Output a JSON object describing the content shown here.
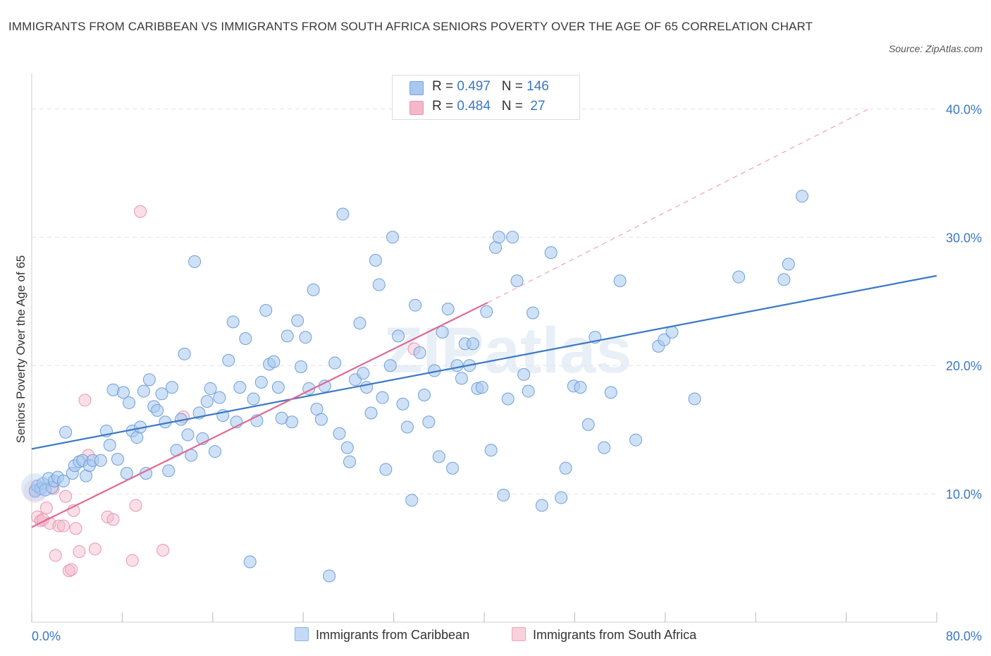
{
  "title": "IMMIGRANTS FROM CARIBBEAN VS IMMIGRANTS FROM SOUTH AFRICA SENIORS POVERTY OVER THE AGE OF 65 CORRELATION CHART",
  "source": "Source: ZipAtlas.com",
  "watermark": "ZIPatlas",
  "legend": {
    "rows": [
      {
        "r_label": "R = ",
        "r_value": "0.497",
        "n_label": "N = ",
        "n_value": "146",
        "color": "#a8c8f0"
      },
      {
        "r_label": "R = ",
        "r_value": "0.484",
        "n_label": "N = ",
        "n_value": " 27",
        "color": "#f5b8ca"
      }
    ]
  },
  "colors": {
    "blue": "#3b78c4",
    "blue_fill": "#a8c8f0",
    "pink": "#e06a93",
    "pink_fill": "#f5b8ca",
    "grid": "#e3e3e3",
    "tick_text": "#3b78c4"
  },
  "chart_data": {
    "type": "scatter",
    "title": "IMMIGRANTS FROM CARIBBEAN VS IMMIGRANTS FROM SOUTH AFRICA SENIORS POVERTY OVER THE AGE OF 65 CORRELATION CHART",
    "xlabel": "",
    "ylabel": "Seniors Poverty Over the Age of 65",
    "xlim": [
      0,
      80
    ],
    "ylim": [
      0,
      42
    ],
    "x_tick_labels": [
      "0.0%",
      "80.0%"
    ],
    "y_ticks": [
      10,
      20,
      30,
      40
    ],
    "y_tick_labels": [
      "10.0%",
      "20.0%",
      "30.0%",
      "40.0%"
    ],
    "grid": true,
    "legend_position": "top-center",
    "series": [
      {
        "name": "Immigrants from Caribbean",
        "color": "#3b78c4",
        "R": 0.497,
        "N": 146,
        "trend": {
          "x": [
            0,
            80
          ],
          "y": [
            13.5,
            27.0
          ],
          "style": "solid"
        },
        "points": [
          [
            0.3,
            10.2
          ],
          [
            0.5,
            10.6
          ],
          [
            0.8,
            10.4
          ],
          [
            1.0,
            10.8
          ],
          [
            1.2,
            10.3
          ],
          [
            1.5,
            11.2
          ],
          [
            1.8,
            10.5
          ],
          [
            2.0,
            11.0
          ],
          [
            2.3,
            11.3
          ],
          [
            2.8,
            11.0
          ],
          [
            3.0,
            14.8
          ],
          [
            3.6,
            11.6
          ],
          [
            3.8,
            12.2
          ],
          [
            4.2,
            12.5
          ],
          [
            4.5,
            12.6
          ],
          [
            4.8,
            11.4
          ],
          [
            5.1,
            12.2
          ],
          [
            5.4,
            12.6
          ],
          [
            6.1,
            12.6
          ],
          [
            6.6,
            14.9
          ],
          [
            6.9,
            13.8
          ],
          [
            7.2,
            18.1
          ],
          [
            7.6,
            12.7
          ],
          [
            8.1,
            17.9
          ],
          [
            8.4,
            11.6
          ],
          [
            8.6,
            17.1
          ],
          [
            8.9,
            14.9
          ],
          [
            9.3,
            14.4
          ],
          [
            9.6,
            15.2
          ],
          [
            9.9,
            18.0
          ],
          [
            10.1,
            11.6
          ],
          [
            10.4,
            18.9
          ],
          [
            10.8,
            16.8
          ],
          [
            11.1,
            16.5
          ],
          [
            11.5,
            17.8
          ],
          [
            11.8,
            15.6
          ],
          [
            12.1,
            11.8
          ],
          [
            12.4,
            18.3
          ],
          [
            12.8,
            13.4
          ],
          [
            13.2,
            15.8
          ],
          [
            13.5,
            20.9
          ],
          [
            13.8,
            14.6
          ],
          [
            14.1,
            13.0
          ],
          [
            14.4,
            28.1
          ],
          [
            14.8,
            16.3
          ],
          [
            15.1,
            14.3
          ],
          [
            15.5,
            17.2
          ],
          [
            15.8,
            18.2
          ],
          [
            16.2,
            13.3
          ],
          [
            16.6,
            17.5
          ],
          [
            16.9,
            16.1
          ],
          [
            17.4,
            20.4
          ],
          [
            17.8,
            23.4
          ],
          [
            18.1,
            15.6
          ],
          [
            18.4,
            18.3
          ],
          [
            18.9,
            22.1
          ],
          [
            19.3,
            4.7
          ],
          [
            19.6,
            17.4
          ],
          [
            19.9,
            15.7
          ],
          [
            20.3,
            18.7
          ],
          [
            20.7,
            24.3
          ],
          [
            21.0,
            20.1
          ],
          [
            21.4,
            20.3
          ],
          [
            21.8,
            18.3
          ],
          [
            22.1,
            15.9
          ],
          [
            22.6,
            22.3
          ],
          [
            23.0,
            15.6
          ],
          [
            23.5,
            23.5
          ],
          [
            23.8,
            19.9
          ],
          [
            24.2,
            22.2
          ],
          [
            24.5,
            18.2
          ],
          [
            24.9,
            25.9
          ],
          [
            25.2,
            16.6
          ],
          [
            25.6,
            15.8
          ],
          [
            25.9,
            18.4
          ],
          [
            26.3,
            3.6
          ],
          [
            26.8,
            20.2
          ],
          [
            27.2,
            14.7
          ],
          [
            27.5,
            31.8
          ],
          [
            27.9,
            13.6
          ],
          [
            28.1,
            12.5
          ],
          [
            28.6,
            18.9
          ],
          [
            29.0,
            23.3
          ],
          [
            29.3,
            19.4
          ],
          [
            29.6,
            18.3
          ],
          [
            30.0,
            16.3
          ],
          [
            30.4,
            28.2
          ],
          [
            30.7,
            26.3
          ],
          [
            31.0,
            17.5
          ],
          [
            31.3,
            11.9
          ],
          [
            31.7,
            20.0
          ],
          [
            31.9,
            30.0
          ],
          [
            32.4,
            22.3
          ],
          [
            32.8,
            17.0
          ],
          [
            33.2,
            15.2
          ],
          [
            33.6,
            9.5
          ],
          [
            33.9,
            24.7
          ],
          [
            34.3,
            21.0
          ],
          [
            34.7,
            17.7
          ],
          [
            35.1,
            15.6
          ],
          [
            35.6,
            19.6
          ],
          [
            36.0,
            12.9
          ],
          [
            36.3,
            22.6
          ],
          [
            36.8,
            24.4
          ],
          [
            37.2,
            12.0
          ],
          [
            37.6,
            20.0
          ],
          [
            38.0,
            19.0
          ],
          [
            38.3,
            21.7
          ],
          [
            38.7,
            20.0
          ],
          [
            39.0,
            21.7
          ],
          [
            39.4,
            18.2
          ],
          [
            39.8,
            18.3
          ],
          [
            40.2,
            24.2
          ],
          [
            40.6,
            13.4
          ],
          [
            41.0,
            29.2
          ],
          [
            41.3,
            30.0
          ],
          [
            41.7,
            9.9
          ],
          [
            42.1,
            17.4
          ],
          [
            42.5,
            30.0
          ],
          [
            42.9,
            26.6
          ],
          [
            43.5,
            19.3
          ],
          [
            43.9,
            18.0
          ],
          [
            44.3,
            24.1
          ],
          [
            45.1,
            9.1
          ],
          [
            45.9,
            28.8
          ],
          [
            46.8,
            9.7
          ],
          [
            47.2,
            12.0
          ],
          [
            47.9,
            18.4
          ],
          [
            48.5,
            18.3
          ],
          [
            49.2,
            15.4
          ],
          [
            49.8,
            22.2
          ],
          [
            50.6,
            13.6
          ],
          [
            51.2,
            17.9
          ],
          [
            52.0,
            26.6
          ],
          [
            53.4,
            14.2
          ],
          [
            55.4,
            21.5
          ],
          [
            55.9,
            22.0
          ],
          [
            56.6,
            22.6
          ],
          [
            58.6,
            17.4
          ],
          [
            62.5,
            26.9
          ],
          [
            66.5,
            26.7
          ],
          [
            66.9,
            27.9
          ],
          [
            68.1,
            33.2
          ]
        ]
      },
      {
        "name": "Immigrants from South Africa",
        "color": "#e06a93",
        "R": 0.484,
        "N": 27,
        "trend": {
          "x": [
            0,
            40.3
          ],
          "y": [
            7.4,
            24.9
          ],
          "style": "solid",
          "extended": {
            "x": [
              40.3,
              74
            ],
            "y": [
              24.9,
              40.0
            ],
            "style": "dashed"
          }
        },
        "points": [
          [
            0.3,
            10.3
          ],
          [
            0.5,
            8.2
          ],
          [
            0.8,
            7.9
          ],
          [
            1.0,
            8.0
          ],
          [
            1.3,
            8.9
          ],
          [
            1.6,
            7.7
          ],
          [
            1.9,
            10.4
          ],
          [
            2.1,
            5.2
          ],
          [
            2.4,
            7.5
          ],
          [
            2.8,
            7.5
          ],
          [
            3.0,
            9.8
          ],
          [
            3.3,
            4.0
          ],
          [
            3.5,
            4.1
          ],
          [
            3.7,
            8.7
          ],
          [
            3.9,
            7.3
          ],
          [
            4.2,
            5.5
          ],
          [
            4.7,
            17.3
          ],
          [
            5.0,
            13.0
          ],
          [
            5.6,
            5.7
          ],
          [
            6.7,
            8.2
          ],
          [
            7.2,
            8.0
          ],
          [
            8.9,
            4.8
          ],
          [
            9.2,
            9.1
          ],
          [
            9.6,
            32.0
          ],
          [
            11.6,
            5.6
          ],
          [
            13.4,
            16.0
          ],
          [
            33.8,
            21.3
          ]
        ]
      }
    ]
  },
  "bottom_legend": [
    {
      "label": "Immigrants from Caribbean",
      "color": "#a8c8f0"
    },
    {
      "label": "Immigrants from South Africa",
      "color": "#f5b8ca"
    }
  ]
}
